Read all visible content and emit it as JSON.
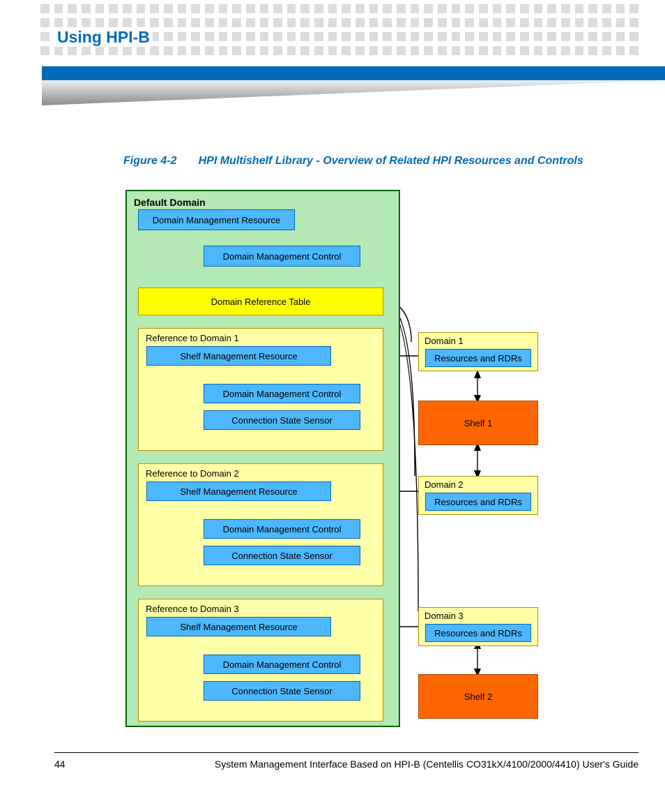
{
  "header": {
    "section_title": "Using HPI-B",
    "dots_color": "#dcdcdc",
    "bar_color": "#006bb6",
    "wedge_from": "#9a9a9a",
    "wedge_to": "#ffffff"
  },
  "figure": {
    "label": "Figure 4-2",
    "caption": "HPI Multishelf Library - Overview of Related HPI Resources and Controls",
    "caption_color": "#006bb6"
  },
  "diagram": {
    "default_domain": {
      "title": "Default Domain",
      "bg": "#b4e8b4",
      "border": "#006600",
      "dmr": "Domain Management Resource",
      "dmc": "Domain Management Control",
      "drt": "Domain Reference Table",
      "refs": [
        {
          "title": "Reference to Domain 1",
          "smr": "Shelf Management Resource",
          "dmc": "Domain Management Control",
          "css": "Connection State Sensor"
        },
        {
          "title": "Reference to Domain 2",
          "smr": "Shelf Management Resource",
          "dmc": "Domain Management Control",
          "css": "Connection State Sensor"
        },
        {
          "title": "Reference to Domain 3",
          "smr": "Shelf Management Resource",
          "dmc": "Domain Management Control",
          "css": "Connection State Sensor"
        }
      ]
    },
    "right": {
      "domains": [
        {
          "title": "Domain 1",
          "sub": "Resources and RDRs"
        },
        {
          "title": "Domain 2",
          "sub": "Resources and RDRs"
        },
        {
          "title": "Domain 3",
          "sub": "Resources and RDRs"
        }
      ],
      "shelves": [
        {
          "label": "Shelf 1"
        },
        {
          "label": "Shelf 2"
        }
      ]
    },
    "colors": {
      "blue_box_bg": "#4db8ff",
      "blue_box_border": "#0066b3",
      "yellow_bg": "#ffff00",
      "yellow_border": "#b38f00",
      "lightyellow_bg": "#ffffa8",
      "orange_bg": "#ff6600",
      "orange_border": "#b34700"
    }
  },
  "footer": {
    "page_number": "44",
    "text": "System Management Interface Based on HPI-B (Centellis CO31kX/4100/2000/4410) User's Guide"
  }
}
